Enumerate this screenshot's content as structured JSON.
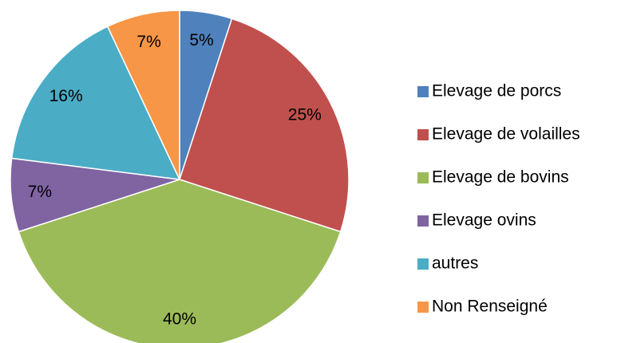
{
  "chart_data": {
    "type": "pie",
    "categories": [
      "Elevage de porcs",
      "Elevage de volailles",
      "Elevage de bovins",
      "Elevage ovins",
      "autres",
      "Non Renseigné"
    ],
    "values": [
      5,
      25,
      40,
      7,
      16,
      7
    ],
    "value_labels": [
      "5%",
      "25%",
      "40%",
      "7%",
      "16%",
      "7%"
    ],
    "colors": [
      "#4f81bd",
      "#c0504d",
      "#9bbb59",
      "#8064a2",
      "#4bacc6",
      "#f79646"
    ],
    "legend": "right"
  }
}
